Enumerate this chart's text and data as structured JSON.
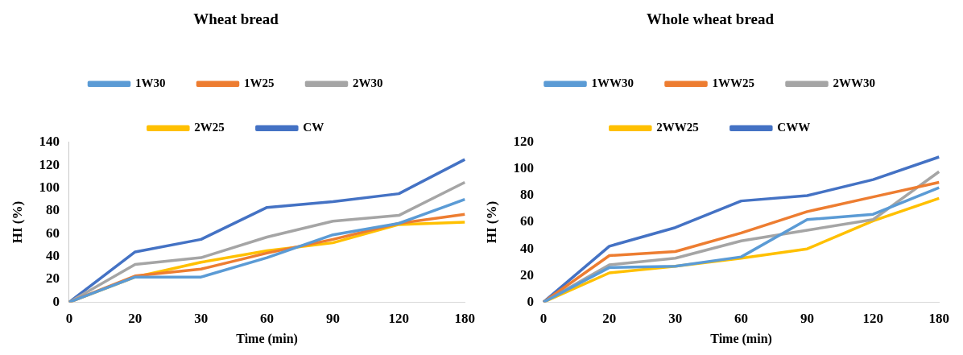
{
  "chart_data": [
    {
      "type": "line",
      "title": "Wheat bread",
      "xlabel": "Time (min)",
      "ylabel": "HI (%)",
      "categories": [
        "0",
        "20",
        "30",
        "60",
        "90",
        "120",
        "180"
      ],
      "ylim": [
        0,
        140
      ],
      "yticks": [
        0,
        20,
        40,
        60,
        80,
        100,
        120,
        140
      ],
      "legend": "top",
      "marker": "none",
      "series": [
        {
          "name": "1W30",
          "color": "#5b9bd5",
          "values": [
            0,
            22,
            22,
            39,
            59,
            69,
            90
          ]
        },
        {
          "name": "1W25",
          "color": "#ed7d31",
          "values": [
            0,
            23,
            29,
            43,
            55,
            69,
            77
          ]
        },
        {
          "name": "2W30",
          "color": "#a5a5a5",
          "values": [
            0,
            33,
            39,
            57,
            71,
            76,
            105
          ]
        },
        {
          "name": "2W25",
          "color": "#ffc000",
          "values": [
            0,
            22,
            35,
            45,
            52,
            68,
            70
          ]
        },
        {
          "name": "CW",
          "color": "#4472c4",
          "values": [
            0,
            44,
            55,
            83,
            88,
            95,
            125
          ]
        }
      ]
    },
    {
      "type": "line",
      "title": "Whole wheat bread",
      "xlabel": "Time (min)",
      "ylabel": "HI (%)",
      "categories": [
        "0",
        "20",
        "30",
        "60",
        "90",
        "120",
        "180"
      ],
      "ylim": [
        0,
        120
      ],
      "yticks": [
        0,
        20,
        40,
        60,
        80,
        100,
        120
      ],
      "legend": "top",
      "marker": "none",
      "series": [
        {
          "name": "1WW30",
          "color": "#5b9bd5",
          "values": [
            0,
            26,
            27,
            34,
            62,
            66,
            86
          ]
        },
        {
          "name": "1WW25",
          "color": "#ed7d31",
          "values": [
            0,
            35,
            38,
            52,
            68,
            79,
            90
          ]
        },
        {
          "name": "2WW30",
          "color": "#a5a5a5",
          "values": [
            0,
            28,
            33,
            46,
            54,
            62,
            98
          ]
        },
        {
          "name": "2WW25",
          "color": "#ffc000",
          "values": [
            0,
            22,
            27,
            33,
            40,
            61,
            78
          ]
        },
        {
          "name": "CWW",
          "color": "#4472c4",
          "values": [
            0,
            42,
            56,
            76,
            80,
            92,
            109
          ]
        }
      ]
    }
  ]
}
